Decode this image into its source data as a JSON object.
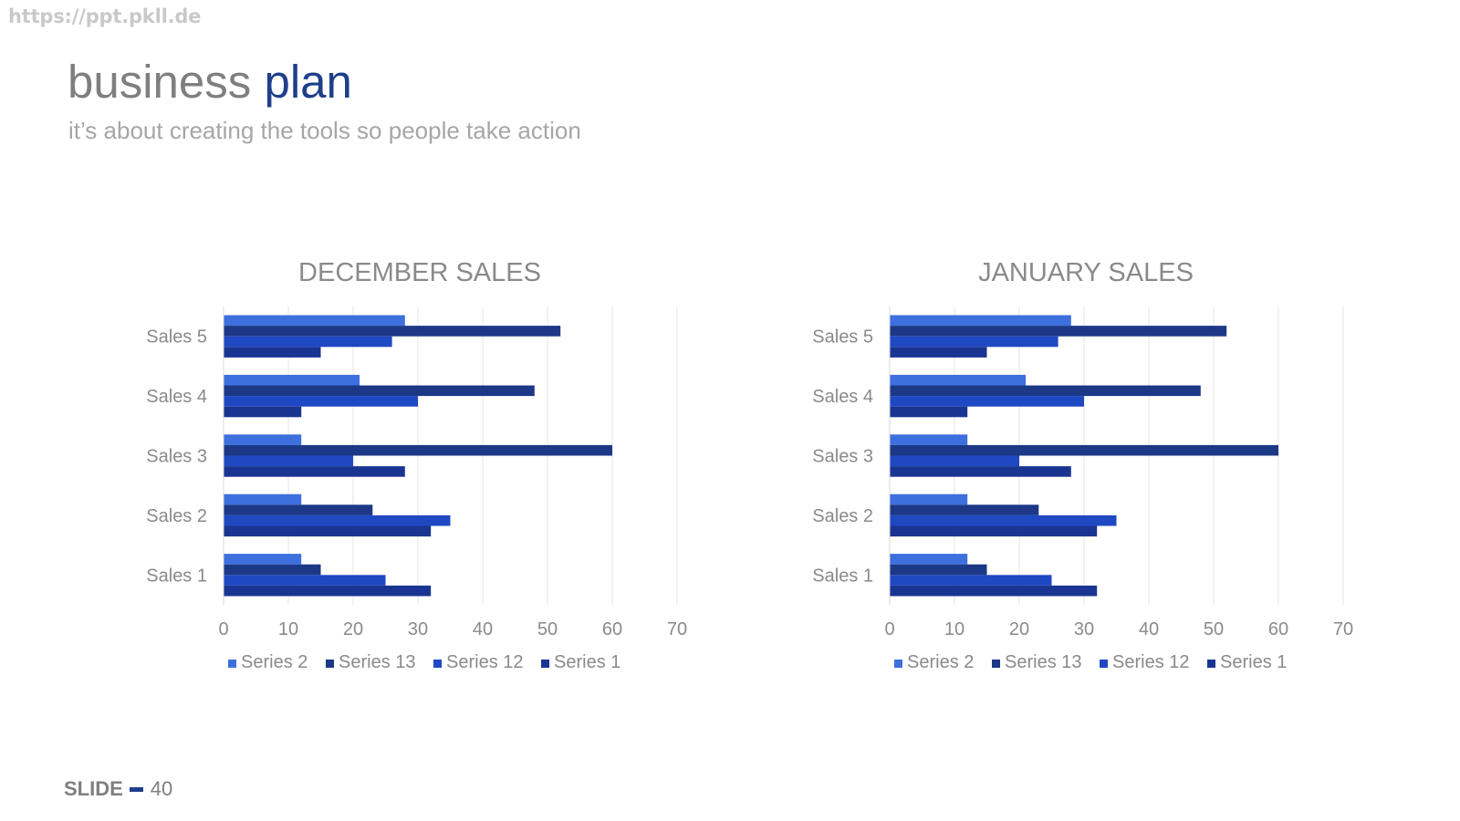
{
  "watermark": "https://ppt.pkll.de",
  "title": {
    "part1": "business ",
    "part2": "plan"
  },
  "subtitle": "it’s about creating the tools so people take action",
  "footer": {
    "label": "SLIDE",
    "number": "40"
  },
  "colors": {
    "series2": "#3d6fde",
    "series13": "#1c3887",
    "series12": "#1f48c3",
    "series1": "#1a3591",
    "grid": "#e6e6e6",
    "text": "#8a8a8a"
  },
  "chart_data": [
    {
      "type": "bar",
      "orientation": "horizontal",
      "title": "DECEMBER SALES",
      "categories": [
        "Sales 1",
        "Sales 2",
        "Sales 3",
        "Sales 4",
        "Sales 5"
      ],
      "series": [
        {
          "name": "Series 2",
          "values": [
            12,
            12,
            12,
            21,
            28
          ]
        },
        {
          "name": "Series 13",
          "values": [
            15,
            23,
            60,
            48,
            52
          ]
        },
        {
          "name": "Series 12",
          "values": [
            25,
            35,
            20,
            30,
            26
          ]
        },
        {
          "name": "Series 1",
          "values": [
            32,
            32,
            28,
            12,
            15
          ]
        }
      ],
      "xlim": [
        0,
        70
      ],
      "xticks": [
        0,
        10,
        20,
        30,
        40,
        50,
        60,
        70
      ],
      "grid": true,
      "legend": "bottom"
    },
    {
      "type": "bar",
      "orientation": "horizontal",
      "title": "JANUARY SALES",
      "categories": [
        "Sales 1",
        "Sales 2",
        "Sales 3",
        "Sales 4",
        "Sales 5"
      ],
      "series": [
        {
          "name": "Series 2",
          "values": [
            12,
            12,
            12,
            21,
            28
          ]
        },
        {
          "name": "Series 13",
          "values": [
            15,
            23,
            60,
            48,
            52
          ]
        },
        {
          "name": "Series 12",
          "values": [
            25,
            35,
            20,
            30,
            26
          ]
        },
        {
          "name": "Series 1",
          "values": [
            32,
            32,
            28,
            12,
            15
          ]
        }
      ],
      "xlim": [
        0,
        70
      ],
      "xticks": [
        0,
        10,
        20,
        30,
        40,
        50,
        60,
        70
      ],
      "grid": true,
      "legend": "bottom"
    }
  ]
}
